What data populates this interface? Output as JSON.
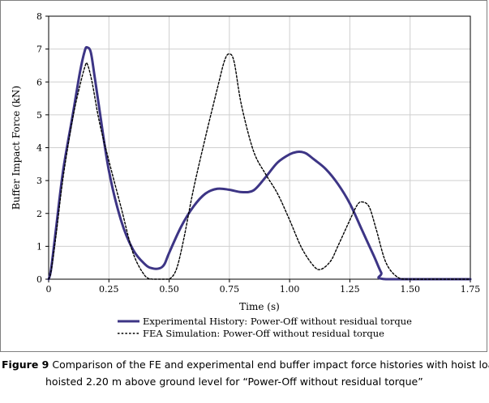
{
  "chart_data": {
    "type": "line",
    "title": "",
    "xlabel": "Time (s)",
    "ylabel": "Buffer Impact Force (kN)",
    "xlim": [
      0,
      1.75
    ],
    "ylim": [
      0,
      8
    ],
    "xticks": [
      0,
      0.25,
      0.5,
      0.75,
      1.0,
      1.25,
      1.5,
      1.75
    ],
    "xtick_labels": [
      "0",
      "0.25",
      "0.50",
      "0.75",
      "1.00",
      "1.25",
      "1.50",
      "1.75"
    ],
    "yticks": [
      0,
      1,
      2,
      3,
      4,
      5,
      6,
      7,
      8
    ],
    "ytick_labels": [
      "0",
      "1",
      "2",
      "3",
      "4",
      "5",
      "6",
      "7",
      "8"
    ],
    "grid": true,
    "legend_position": "bottom",
    "series": [
      {
        "name": "Experimental History: Power-Off without residual torque",
        "style": "solid",
        "color": "#3d3585",
        "x": [
          0,
          0.01,
          0.03,
          0.06,
          0.1,
          0.13,
          0.15,
          0.16,
          0.175,
          0.19,
          0.21,
          0.25,
          0.3,
          0.35,
          0.4,
          0.43,
          0.46,
          0.48,
          0.5,
          0.55,
          0.6,
          0.65,
          0.7,
          0.75,
          0.8,
          0.85,
          0.9,
          0.95,
          1.0,
          1.03,
          1.05,
          1.07,
          1.1,
          1.15,
          1.2,
          1.25,
          1.3,
          1.35,
          1.38,
          1.4,
          1.75
        ],
        "y": [
          0,
          0.3,
          1.5,
          3.3,
          5.0,
          6.3,
          6.95,
          7.05,
          6.9,
          6.2,
          5.2,
          3.3,
          1.8,
          0.9,
          0.45,
          0.33,
          0.33,
          0.45,
          0.8,
          1.6,
          2.2,
          2.6,
          2.75,
          2.72,
          2.65,
          2.7,
          3.1,
          3.55,
          3.8,
          3.87,
          3.87,
          3.82,
          3.65,
          3.35,
          2.9,
          2.3,
          1.5,
          0.7,
          0.2,
          0,
          0
        ]
      },
      {
        "name": "FEA Simulation: Power-Off without residual torque",
        "style": "dotted",
        "color": "#000000",
        "x": [
          0,
          0.01,
          0.03,
          0.06,
          0.1,
          0.13,
          0.15,
          0.16,
          0.18,
          0.21,
          0.25,
          0.3,
          0.35,
          0.4,
          0.43,
          0.47,
          0.5,
          0.53,
          0.56,
          0.6,
          0.65,
          0.7,
          0.73,
          0.75,
          0.77,
          0.8,
          0.85,
          0.9,
          0.95,
          1.0,
          1.05,
          1.1,
          1.13,
          1.17,
          1.2,
          1.25,
          1.28,
          1.3,
          1.33,
          1.36,
          1.4,
          1.45,
          1.5,
          1.75
        ],
        "y": [
          0,
          0.25,
          1.3,
          3.1,
          4.9,
          5.9,
          6.45,
          6.55,
          6.0,
          4.8,
          3.6,
          2.2,
          0.8,
          0.1,
          0,
          0,
          0,
          0.3,
          1.2,
          2.7,
          4.3,
          5.8,
          6.65,
          6.85,
          6.6,
          5.3,
          3.9,
          3.2,
          2.6,
          1.8,
          0.95,
          0.4,
          0.3,
          0.55,
          1.0,
          1.8,
          2.25,
          2.35,
          2.2,
          1.5,
          0.5,
          0.05,
          0,
          0
        ]
      }
    ]
  },
  "caption": {
    "label": "Figure 9",
    "line1_text": "Comparison of the FE and experimental end buffer impact force histories with hoist load",
    "line2_text": "hoisted 2.20 m above ground level for “Power-Off without residual torque”"
  }
}
